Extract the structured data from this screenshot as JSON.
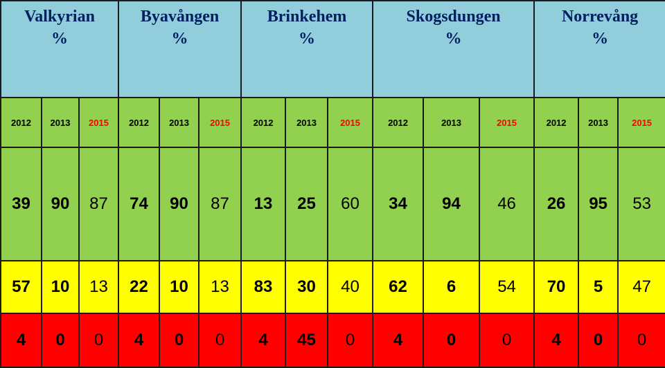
{
  "colors": {
    "header_bg": "#92CDDC",
    "header_text": "#002060",
    "green_bg": "#92D050",
    "yellow_bg": "#FFFF00",
    "red_bg": "#FF0000",
    "year_2015_text": "#FF0000",
    "year_other_text": "#000000",
    "border": "#1A1A1A"
  },
  "areas": [
    {
      "name": "Valkyrian",
      "unit": "%"
    },
    {
      "name": "Byavången",
      "unit": "%"
    },
    {
      "name": "Brinkehem",
      "unit": "%"
    },
    {
      "name": "Skogsdungen",
      "unit": "%"
    },
    {
      "name": "Norrevång",
      "unit": "%"
    }
  ],
  "years": [
    "2012",
    "2013",
    "2015",
    "2012",
    "2013",
    "2015",
    "2012",
    "2013",
    "2015",
    "2012",
    "2013",
    "2015",
    "2012",
    "2013",
    "2015"
  ],
  "rows": {
    "green": [
      "39",
      "90",
      "87",
      "74",
      "90",
      "87",
      "13",
      "25",
      "60",
      "34",
      "94",
      "46",
      "26",
      "95",
      "53"
    ],
    "yellow": [
      "57",
      "10",
      "13",
      "22",
      "10",
      "13",
      "83",
      "30",
      "40",
      "62",
      "6",
      "54",
      "70",
      "5",
      "47"
    ],
    "red": [
      "4",
      "0",
      "0",
      "4",
      "0",
      "0",
      "4",
      "45",
      "0",
      "4",
      "0",
      "0",
      "4",
      "0",
      "0"
    ]
  }
}
